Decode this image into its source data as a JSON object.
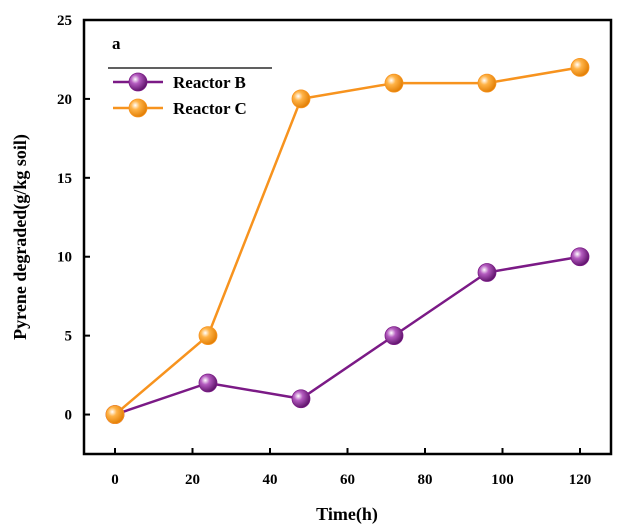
{
  "chart_data": {
    "type": "line",
    "panel_label": "a",
    "xlabel": "Time(h)",
    "ylabel": "Pyrene degraded(g/kg soil)",
    "xlim": [
      -8,
      128
    ],
    "ylim": [
      -2.5,
      25
    ],
    "xticks": [
      0,
      20,
      40,
      60,
      80,
      100,
      120
    ],
    "yticks": [
      0,
      5,
      10,
      15,
      20,
      25
    ],
    "grid": false,
    "legend_position": "top-left",
    "x": [
      0,
      24,
      48,
      72,
      96,
      120
    ],
    "series": [
      {
        "name": "Reactor B",
        "color": "#7b1a86",
        "values": [
          0,
          2,
          1,
          5,
          9,
          10
        ]
      },
      {
        "name": "Reactor C",
        "color": "#f7931e",
        "values": [
          0,
          5,
          20,
          21,
          21,
          22
        ]
      }
    ]
  }
}
